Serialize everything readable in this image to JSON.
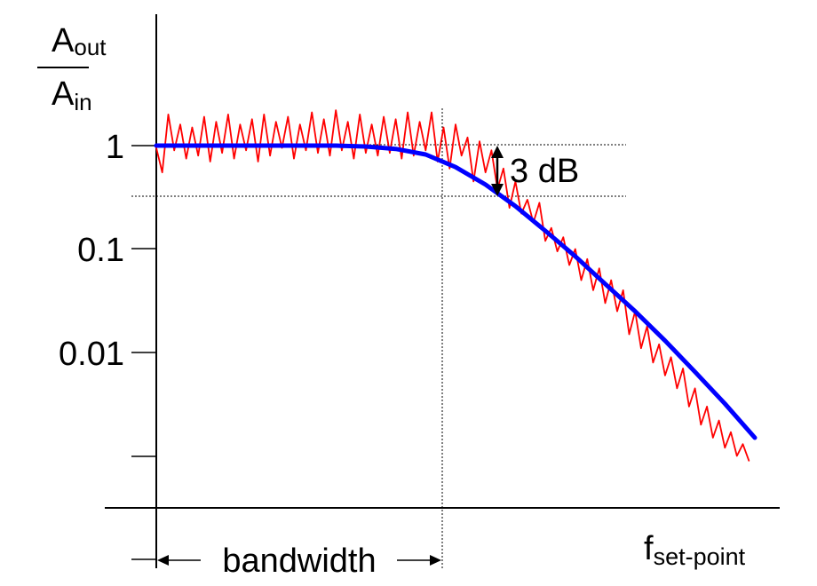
{
  "chart_data": {
    "type": "line",
    "yscale": "log",
    "y_axis_label": {
      "main": "A",
      "num_sub": "out",
      "den_sub": "in"
    },
    "y_ticks": [
      "1",
      "0.1",
      "0.01"
    ],
    "x_axis_label": {
      "main": "f",
      "sub": "set-point"
    },
    "annotations": {
      "db3": "3 dB",
      "bandwidth": "bandwidth"
    },
    "series": [
      {
        "role": "measured",
        "color": "#ff0000",
        "points": [
          [
            0.0,
            0.95
          ],
          [
            0.01,
            0.55
          ],
          [
            0.02,
            2.0
          ],
          [
            0.03,
            0.9
          ],
          [
            0.04,
            1.6
          ],
          [
            0.05,
            0.75
          ],
          [
            0.06,
            1.5
          ],
          [
            0.07,
            0.8
          ],
          [
            0.08,
            1.9
          ],
          [
            0.09,
            0.7
          ],
          [
            0.1,
            1.7
          ],
          [
            0.11,
            0.85
          ],
          [
            0.12,
            2.0
          ],
          [
            0.13,
            0.75
          ],
          [
            0.14,
            1.6
          ],
          [
            0.15,
            0.9
          ],
          [
            0.16,
            1.8
          ],
          [
            0.17,
            0.7
          ],
          [
            0.18,
            2.0
          ],
          [
            0.19,
            0.8
          ],
          [
            0.2,
            1.7
          ],
          [
            0.21,
            0.95
          ],
          [
            0.22,
            1.9
          ],
          [
            0.23,
            0.75
          ],
          [
            0.24,
            1.6
          ],
          [
            0.25,
            0.9
          ],
          [
            0.26,
            2.1
          ],
          [
            0.27,
            0.85
          ],
          [
            0.28,
            1.8
          ],
          [
            0.29,
            0.8
          ],
          [
            0.3,
            2.2
          ],
          [
            0.31,
            0.9
          ],
          [
            0.32,
            1.7
          ],
          [
            0.33,
            0.75
          ],
          [
            0.34,
            2.0
          ],
          [
            0.35,
            0.85
          ],
          [
            0.36,
            1.6
          ],
          [
            0.37,
            0.8
          ],
          [
            0.38,
            1.9
          ],
          [
            0.39,
            0.85
          ],
          [
            0.4,
            1.8
          ],
          [
            0.41,
            0.75
          ],
          [
            0.42,
            2.1
          ],
          [
            0.43,
            0.8
          ],
          [
            0.44,
            1.7
          ],
          [
            0.45,
            0.9
          ],
          [
            0.46,
            2.1
          ],
          [
            0.47,
            0.7
          ],
          [
            0.48,
            1.5
          ],
          [
            0.49,
            0.6
          ],
          [
            0.5,
            1.6
          ],
          [
            0.51,
            0.8
          ],
          [
            0.52,
            1.2
          ],
          [
            0.53,
            0.45
          ],
          [
            0.54,
            1.1
          ],
          [
            0.55,
            0.55
          ],
          [
            0.56,
            0.9
          ],
          [
            0.57,
            0.38
          ],
          [
            0.58,
            0.6
          ],
          [
            0.59,
            0.25
          ],
          [
            0.6,
            0.45
          ],
          [
            0.61,
            0.22
          ],
          [
            0.62,
            0.3
          ],
          [
            0.63,
            0.18
          ],
          [
            0.64,
            0.28
          ],
          [
            0.65,
            0.12
          ],
          [
            0.66,
            0.16
          ],
          [
            0.67,
            0.095
          ],
          [
            0.68,
            0.13
          ],
          [
            0.69,
            0.07
          ],
          [
            0.7,
            0.1
          ],
          [
            0.71,
            0.05
          ],
          [
            0.72,
            0.08
          ],
          [
            0.73,
            0.04
          ],
          [
            0.74,
            0.065
          ],
          [
            0.75,
            0.03
          ],
          [
            0.76,
            0.05
          ],
          [
            0.77,
            0.025
          ],
          [
            0.78,
            0.04
          ],
          [
            0.79,
            0.015
          ],
          [
            0.8,
            0.025
          ],
          [
            0.81,
            0.011
          ],
          [
            0.82,
            0.018
          ],
          [
            0.83,
            0.008
          ],
          [
            0.84,
            0.012
          ],
          [
            0.85,
            0.006
          ],
          [
            0.86,
            0.009
          ],
          [
            0.87,
            0.0045
          ],
          [
            0.88,
            0.007
          ],
          [
            0.89,
            0.003
          ],
          [
            0.9,
            0.0045
          ],
          [
            0.91,
            0.002
          ],
          [
            0.92,
            0.003
          ],
          [
            0.93,
            0.0015
          ],
          [
            0.94,
            0.0022
          ],
          [
            0.95,
            0.0012
          ],
          [
            0.96,
            0.0017
          ],
          [
            0.97,
            0.001
          ],
          [
            0.98,
            0.0013
          ],
          [
            0.99,
            0.0009
          ]
        ]
      },
      {
        "role": "fit",
        "color": "#0000ff",
        "points": [
          [
            0.0,
            1.0
          ],
          [
            0.1,
            1.0
          ],
          [
            0.2,
            1.0
          ],
          [
            0.3,
            1.0
          ],
          [
            0.35,
            0.98
          ],
          [
            0.4,
            0.93
          ],
          [
            0.45,
            0.82
          ],
          [
            0.5,
            0.62
          ],
          [
            0.55,
            0.42
          ],
          [
            0.6,
            0.26
          ],
          [
            0.65,
            0.15
          ],
          [
            0.7,
            0.085
          ],
          [
            0.75,
            0.046
          ],
          [
            0.8,
            0.025
          ],
          [
            0.85,
            0.013
          ],
          [
            0.9,
            0.0065
          ],
          [
            0.95,
            0.0032
          ],
          [
            1.0,
            0.0015
          ]
        ]
      }
    ],
    "grid": false,
    "legend": "none"
  }
}
